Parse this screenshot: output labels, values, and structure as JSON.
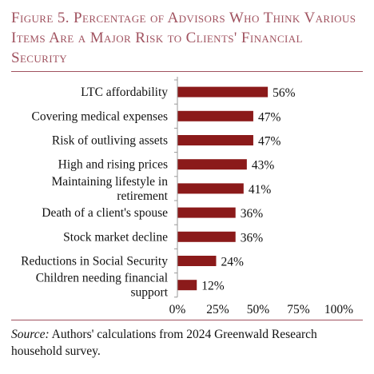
{
  "title": "Figure 5. Percentage of Advisors Who Think Various Items Are a Major Risk to Clients' Financial Security",
  "source_label": "Source:",
  "source_text": "Authors' calculations from 2024 Greenwald Research household survey.",
  "chart_data": {
    "type": "bar",
    "orientation": "horizontal",
    "categories": [
      "LTC affordability",
      "Covering medical expenses",
      "Risk of outliving assets",
      "High and rising prices",
      "Maintaining lifestyle in retirement",
      "Death of a client's spouse",
      "Stock market decline",
      "Reductions in Social Security",
      "Children needing financial support"
    ],
    "category_lines": [
      [
        "LTC affordability"
      ],
      [
        "Covering medical expenses"
      ],
      [
        "Risk of outliving assets"
      ],
      [
        "High and rising prices"
      ],
      [
        "Maintaining lifestyle in",
        "retirement"
      ],
      [
        "Death of a client's spouse"
      ],
      [
        "Stock market decline"
      ],
      [
        "Reductions in Social Security"
      ],
      [
        "Children needing financial",
        "support"
      ]
    ],
    "values": [
      56,
      47,
      47,
      43,
      41,
      36,
      36,
      24,
      12
    ],
    "data_labels": [
      "56%",
      "47%",
      "47%",
      "43%",
      "41%",
      "36%",
      "36%",
      "24%",
      "12%"
    ],
    "xlim": [
      0,
      100
    ],
    "xticks": [
      0,
      25,
      50,
      75,
      100
    ],
    "xtick_labels": [
      "0%",
      "25%",
      "50%",
      "75%",
      "100%"
    ],
    "grid": false,
    "bar_color": "#8b1a1a"
  }
}
